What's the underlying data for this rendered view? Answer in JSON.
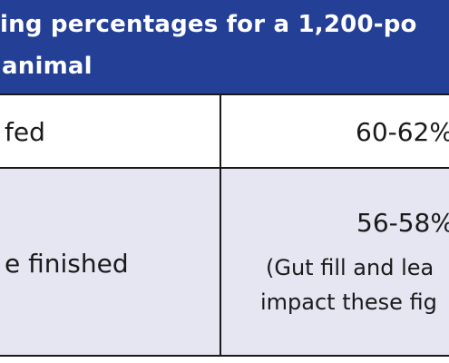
{
  "table": {
    "title_line1": "ing percentages for a 1,200-po",
    "title_line2": "animal",
    "rows": [
      {
        "label": "fed",
        "value": "60-62%"
      },
      {
        "label": "e finished",
        "value": "56-58%",
        "note_line1": "(Gut fill and lea",
        "note_line2": "impact these fig"
      }
    ]
  },
  "colors": {
    "header_bg": "#233f96",
    "header_text": "#ffffff",
    "row_alt_bg": "#e6e6f3",
    "border": "#1a1a1a"
  }
}
